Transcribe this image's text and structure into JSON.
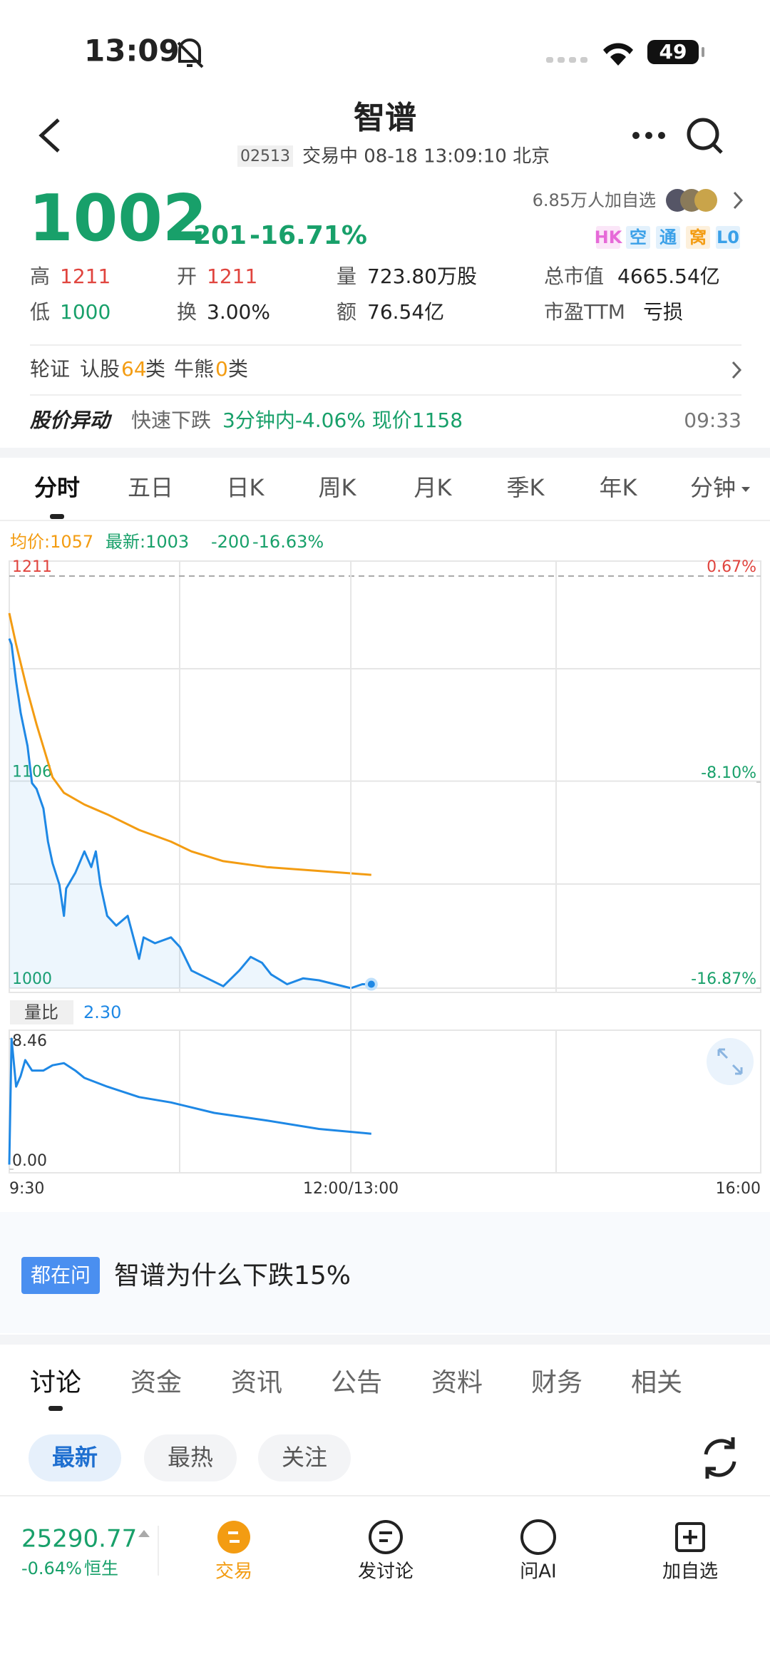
{
  "status_bar": {
    "time": "13:09",
    "battery": "49"
  },
  "header": {
    "title": "智谱",
    "code": "02513",
    "status": "交易中 08-18 13:09:10 北京"
  },
  "quote": {
    "price": "1002",
    "change": "-201",
    "change_pct": "-16.71%",
    "watchers": "6.85万人加自选",
    "tags": [
      "HK",
      "空",
      "通",
      "窝",
      "L0"
    ]
  },
  "stats": [
    {
      "label": "高",
      "value": "1211"
    },
    {
      "label": "开",
      "value": "1211"
    },
    {
      "label": "量",
      "value": "723.80万股"
    },
    {
      "label": "总市值",
      "value": "4665.54亿"
    },
    {
      "label": "低",
      "value": "1000"
    },
    {
      "label": "换",
      "value": "3.00%"
    },
    {
      "label": "额",
      "value": "76.54亿"
    },
    {
      "label": "市盈TTM",
      "value": "亏损"
    }
  ],
  "warrants": {
    "label": "轮证",
    "call_label": "认股",
    "call_count": "64",
    "unit": "类",
    "bull_label": "牛熊",
    "bull_count": "0"
  },
  "alert": {
    "title": "股价异动",
    "type": "快速下跌",
    "detail": "3分钟内-4.06% 现价1158",
    "time": "09:33"
  },
  "chart_tabs": [
    "分时",
    "五日",
    "日K",
    "周K",
    "月K",
    "季K",
    "年K",
    "分钟"
  ],
  "chart_info": {
    "avg": "均价:1057",
    "latest": "最新:1003",
    "change": "-200",
    "change_pct": "-16.63%"
  },
  "chart_data": [
    {
      "type": "line",
      "xlim": [
        0,
        330
      ],
      "ylim": [
        1000,
        1211
      ],
      "yticks": [
        1211,
        1106,
        1000
      ],
      "y2lim": [
        -16.87,
        0.67
      ],
      "y2ticks": [
        {
          "value": 0.67,
          "label": "0.67%"
        },
        {
          "value": -8.1,
          "label": "-8.10%"
        },
        {
          "value": -16.87,
          "label": "-16.87%"
        }
      ],
      "series": [
        {
          "color": "#1e88e5",
          "x": [
            0,
            1,
            3,
            5,
            8,
            10,
            12,
            15,
            17,
            19,
            22,
            24,
            25,
            29,
            33,
            36,
            38,
            40,
            43,
            47,
            52,
            57,
            59,
            64,
            71,
            75,
            80,
            87,
            94,
            101,
            106,
            111,
            115,
            122,
            129,
            136,
            143,
            150,
            155,
            159
          ],
          "values": [
            1179,
            1176,
            1157,
            1141,
            1124,
            1105,
            1102,
            1092,
            1075,
            1064,
            1053,
            1037,
            1051,
            1059,
            1070,
            1062,
            1070,
            1053,
            1037,
            1032,
            1037,
            1015,
            1026,
            1023,
            1026,
            1021,
            1009,
            1005,
            1001,
            1009,
            1016,
            1013,
            1007,
            1002,
            1005,
            1004,
            1002,
            1000,
            1002,
            1002
          ]
        },
        {
          "color": "#f39c12",
          "x": [
            0,
            3,
            8,
            12,
            19,
            24,
            33,
            43,
            57,
            71,
            80,
            94,
            113,
            136,
            159
          ],
          "values": [
            1192,
            1176,
            1152,
            1135,
            1108,
            1100,
            1094,
            1089,
            1081,
            1075,
            1070,
            1065,
            1062,
            1060,
            1058
          ]
        }
      ]
    },
    {
      "type": "line",
      "title": "量比",
      "current": "2.30",
      "xlim": [
        0,
        330
      ],
      "ylim": [
        0,
        8.46
      ],
      "xticks": [
        {
          "value": 0,
          "label": "9:30"
        },
        {
          "value": 150,
          "label": "12:00/13:00"
        },
        {
          "value": 330,
          "label": "16:00"
        }
      ],
      "yticks": [
        {
          "value": 0,
          "label": "0.00"
        },
        8.46
      ],
      "series": [
        {
          "color": "#1e88e5",
          "x": [
            0,
            1,
            3,
            5,
            7,
            10,
            15,
            19,
            24,
            29,
            33,
            43,
            57,
            71,
            90,
            113,
            136,
            159
          ],
          "values": [
            0.3,
            8.46,
            5.36,
            6.05,
            7.08,
            6.4,
            6.4,
            6.74,
            6.88,
            6.4,
            5.92,
            5.36,
            4.68,
            4.33,
            3.65,
            3.16,
            2.61,
            2.3
          ]
        }
      ]
    }
  ],
  "ask_banner": {
    "badge": "都在问",
    "text": "智谱为什么下跌15%"
  },
  "content_tabs": [
    "讨论",
    "资金",
    "资讯",
    "公告",
    "资料",
    "财务",
    "相关"
  ],
  "filters": [
    "最新",
    "最热",
    "关注"
  ],
  "bottom_bar": {
    "index_value": "25290.77",
    "index_change": "-0.64%",
    "index_name": "恒生",
    "actions": [
      "交易",
      "发讨论",
      "问AI",
      "加自选"
    ]
  }
}
